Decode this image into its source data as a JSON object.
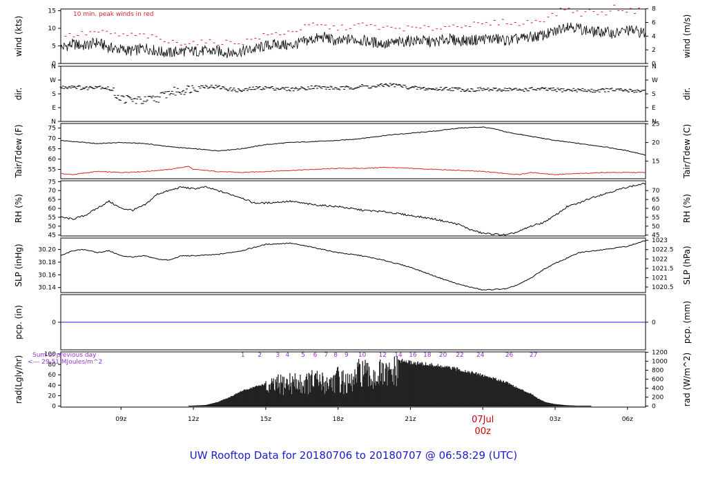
{
  "title": "UW Rooftop Data for 20180706  to  20180707 @ 06:58:29  (UTC)",
  "colors": {
    "title": "#1a1acc",
    "peak": "#e02020",
    "dew": "#e02020",
    "pcp": "#1a1acc",
    "rad_note": "#9933cc",
    "day": "#cc0000",
    "line": "#000000"
  },
  "x_axis": {
    "range": [
      6.5,
      30.75
    ],
    "ticks": [
      {
        "x": 9,
        "label": "09z"
      },
      {
        "x": 12,
        "label": "12z"
      },
      {
        "x": 15,
        "label": "15z"
      },
      {
        "x": 18,
        "label": "18z"
      },
      {
        "x": 21,
        "label": "21z"
      },
      {
        "x": 24,
        "label": "00z"
      },
      {
        "x": 27,
        "label": "03z"
      },
      {
        "x": 30,
        "label": "06z"
      }
    ],
    "day_label": {
      "x": 24,
      "line1": "07Jul",
      "line2": "00z"
    }
  },
  "chart_data": [
    {
      "type": "line",
      "id": "wind",
      "ylabel_left": "wind (kts)",
      "ylabel_right": "wind (m/s)",
      "ylim": [
        0,
        15.5
      ],
      "left_ticks": [
        {
          "v": 0,
          "l": "0"
        },
        {
          "v": 5,
          "l": "5"
        },
        {
          "v": 10,
          "l": "10"
        },
        {
          "v": 15,
          "l": "15"
        }
      ],
      "right_ticks": [
        {
          "v": 0,
          "l": "0"
        },
        {
          "v": 3.888,
          "l": "2"
        },
        {
          "v": 7.776,
          "l": "4"
        },
        {
          "v": 11.664,
          "l": "6"
        },
        {
          "v": 15.552,
          "l": "8"
        }
      ],
      "annotation": "10 min. peak winds in red",
      "series": [
        {
          "role": "mean",
          "x": [
            6.5,
            7,
            7.5,
            8,
            8.5,
            9,
            9.5,
            10,
            10.5,
            11,
            11.5,
            12,
            12.5,
            13,
            13.5,
            14,
            14.5,
            15,
            15.5,
            16,
            16.5,
            17,
            17.5,
            18,
            18.5,
            19,
            19.5,
            20,
            20.5,
            21,
            21.5,
            22,
            22.5,
            23,
            23.5,
            24,
            24.5,
            25,
            25.5,
            26,
            26.5,
            27,
            27.5,
            28,
            28.5,
            29,
            29.5,
            30,
            30.5,
            30.75
          ],
          "y": [
            4.5,
            5.5,
            5,
            6,
            4.5,
            4,
            3.5,
            4.5,
            3.5,
            3,
            3.5,
            3.5,
            3.5,
            3.5,
            3,
            3.5,
            4,
            5,
            5.5,
            5,
            6,
            7,
            7.5,
            6,
            7,
            6.5,
            6,
            5.5,
            6,
            6.5,
            6.5,
            6,
            7,
            6.5,
            6.5,
            7,
            7,
            6.5,
            7,
            7.5,
            8,
            9,
            11,
            10,
            9,
            9,
            8.5,
            9.5,
            9,
            8.5
          ]
        },
        {
          "role": "peak",
          "x": [
            7,
            8,
            9,
            10,
            11,
            12,
            13,
            14,
            15,
            16,
            17,
            18,
            19,
            20,
            21,
            22,
            23,
            24,
            25,
            25.5,
            26,
            26.5,
            27,
            27.5,
            28,
            28.5,
            29,
            29.5,
            30,
            30.5
          ],
          "y": [
            8,
            9,
            8,
            8,
            6,
            6,
            6,
            6,
            8,
            9,
            11,
            10,
            11,
            10,
            10,
            10,
            11,
            11,
            12,
            11,
            12,
            12.5,
            14,
            16,
            14,
            15,
            14,
            16,
            15,
            15
          ]
        }
      ]
    },
    {
      "type": "scatter",
      "id": "dir",
      "ylabel_left": "dir.",
      "ylabel_right": "dir.",
      "ylim": [
        0,
        360
      ],
      "left_ticks": [
        {
          "v": 360,
          "l": "N"
        },
        {
          "v": 270,
          "l": "W"
        },
        {
          "v": 180,
          "l": "S"
        },
        {
          "v": 90,
          "l": "E"
        },
        {
          "v": 0,
          "l": "N"
        }
      ],
      "right_ticks": [
        {
          "v": 360,
          "l": "N"
        },
        {
          "v": 270,
          "l": "W"
        },
        {
          "v": 180,
          "l": "S"
        },
        {
          "v": 90,
          "l": "E"
        },
        {
          "v": 0,
          "l": "N"
        }
      ],
      "series": [
        {
          "role": "dir",
          "x": [
            6.5,
            7,
            7.5,
            8,
            8.5,
            9,
            9.5,
            10,
            10.5,
            11,
            11.5,
            12,
            12.5,
            13,
            13.5,
            14,
            14.5,
            15,
            15.5,
            16,
            16.5,
            17,
            17.5,
            18,
            18.5,
            19,
            19.5,
            20,
            20.5,
            21,
            21.5,
            22,
            22.5,
            23,
            23.5,
            24,
            24.5,
            25,
            25.5,
            26,
            26.5,
            27,
            27.5,
            28,
            28.5,
            29,
            29.5,
            30,
            30.5,
            30.75
          ],
          "y": [
            220,
            230,
            215,
            230,
            215,
            150,
            140,
            135,
            150,
            190,
            200,
            220,
            230,
            225,
            210,
            200,
            215,
            220,
            215,
            210,
            215,
            225,
            220,
            215,
            220,
            230,
            225,
            240,
            235,
            220,
            215,
            210,
            215,
            210,
            205,
            210,
            205,
            210,
            205,
            210,
            210,
            205,
            205,
            205,
            200,
            205,
            205,
            200,
            200,
            200
          ]
        }
      ]
    },
    {
      "type": "line",
      "id": "temp",
      "ylabel_left": "Tair/Tdew (F)",
      "ylabel_right": "Tair/Tdew (C)",
      "ylim": [
        50.5,
        77.2
      ],
      "left_ticks": [
        {
          "v": 55,
          "l": "55"
        },
        {
          "v": 60,
          "l": "60"
        },
        {
          "v": 65,
          "l": "65"
        },
        {
          "v": 70,
          "l": "70"
        },
        {
          "v": 75,
          "l": "75"
        }
      ],
      "right_ticks": [
        {
          "v": 59,
          "l": "15"
        },
        {
          "v": 68,
          "l": "20"
        },
        {
          "v": 77,
          "l": "25"
        }
      ],
      "series": [
        {
          "name": "Tair",
          "x": [
            6.5,
            7,
            8,
            9,
            10,
            11,
            12,
            13,
            14,
            15,
            16,
            17,
            18,
            19,
            20,
            21,
            22,
            23,
            24,
            24.5,
            25,
            26,
            27,
            28,
            29,
            30,
            30.75
          ],
          "y": [
            69,
            68.5,
            67.5,
            68,
            67.5,
            66,
            65,
            64,
            65,
            67,
            68,
            68.5,
            69,
            70,
            71.5,
            72.5,
            73.5,
            75,
            75.5,
            74.5,
            73,
            71,
            69,
            67.5,
            66,
            64,
            62
          ]
        },
        {
          "name": "Tdew",
          "x": [
            6.5,
            7,
            8,
            9,
            10,
            11,
            11.8,
            12,
            13,
            14,
            15,
            16,
            17,
            18,
            19,
            20,
            21,
            22,
            23,
            24,
            25,
            25.5,
            26,
            27,
            28,
            29,
            30,
            30.75
          ],
          "y": [
            53,
            52.5,
            54,
            53.5,
            54,
            55,
            56.5,
            55,
            54,
            53.5,
            54,
            54.5,
            55,
            55.5,
            55.5,
            56,
            55.5,
            55,
            54.5,
            54,
            53,
            52.5,
            53.5,
            52.5,
            53,
            53.5,
            53.5,
            53.5
          ]
        }
      ]
    },
    {
      "type": "line",
      "id": "rh",
      "ylabel_left": "RH (%)",
      "ylabel_right": "RH (%)",
      "ylim": [
        44.5,
        75.5
      ],
      "left_ticks": [
        {
          "v": 45,
          "l": "45"
        },
        {
          "v": 50,
          "l": "50"
        },
        {
          "v": 55,
          "l": "55"
        },
        {
          "v": 60,
          "l": "60"
        },
        {
          "v": 65,
          "l": "65"
        },
        {
          "v": 70,
          "l": "70"
        },
        {
          "v": 75,
          "l": "75"
        }
      ],
      "right_ticks": [
        {
          "v": 45,
          "l": "45"
        },
        {
          "v": 50,
          "l": "50"
        },
        {
          "v": 55,
          "l": "55"
        },
        {
          "v": 60,
          "l": "60"
        },
        {
          "v": 65,
          "l": "65"
        },
        {
          "v": 70,
          "l": "70"
        }
      ],
      "series": [
        {
          "name": "RH",
          "x": [
            6.5,
            7,
            7.5,
            8,
            8.5,
            9,
            9.5,
            10,
            10.5,
            11,
            11.5,
            12,
            12.5,
            13,
            13.5,
            14,
            14.5,
            15,
            16,
            17,
            18,
            19,
            20,
            21,
            22,
            23,
            23.5,
            24,
            25,
            25.5,
            26,
            26.5,
            27,
            27.5,
            28,
            28.5,
            29,
            29.5,
            30,
            30.75
          ],
          "y": [
            55,
            54,
            56,
            60,
            64,
            60,
            59,
            62,
            68,
            70,
            72,
            71,
            72,
            70,
            68,
            66,
            63,
            63,
            64,
            62,
            61,
            59,
            58,
            56,
            54,
            51,
            48,
            46,
            45,
            47,
            50,
            52,
            56,
            61,
            63,
            66,
            68,
            70,
            72,
            74
          ]
        }
      ]
    },
    {
      "type": "line",
      "id": "slp",
      "ylabel_left": "SLP (inHg)",
      "ylabel_right": "SLP (hPa)",
      "ylim": [
        30.132,
        30.218
      ],
      "left_ticks": [
        {
          "v": 30.14,
          "l": "30.14"
        },
        {
          "v": 30.16,
          "l": "30.16"
        },
        {
          "v": 30.18,
          "l": "30.18"
        },
        {
          "v": 30.2,
          "l": "30.20"
        }
      ],
      "right_ticks": [
        {
          "v": 30.1407,
          "l": "1020.5"
        },
        {
          "v": 30.1555,
          "l": "1021"
        },
        {
          "v": 30.1702,
          "l": "1021.5"
        },
        {
          "v": 30.185,
          "l": "1022"
        },
        {
          "v": 30.1998,
          "l": "1022.5"
        },
        {
          "v": 30.2145,
          "l": "1023"
        }
      ],
      "series": [
        {
          "name": "SLP",
          "x": [
            6.5,
            7,
            7.5,
            8,
            8.5,
            9,
            9.5,
            10,
            10.5,
            11,
            11.5,
            12,
            13,
            14,
            15,
            16,
            17,
            18,
            19,
            20,
            21,
            22,
            23,
            24,
            25,
            25.5,
            26,
            26.5,
            27,
            28,
            29,
            30,
            30.75
          ],
          "y": [
            30.19,
            30.198,
            30.2,
            30.195,
            30.198,
            30.19,
            30.188,
            30.19,
            30.185,
            30.183,
            30.19,
            30.19,
            30.192,
            30.198,
            30.208,
            30.21,
            30.203,
            30.195,
            30.19,
            30.182,
            30.172,
            30.158,
            30.145,
            30.136,
            30.138,
            30.145,
            30.155,
            30.168,
            30.178,
            30.195,
            30.2,
            30.205,
            30.214
          ]
        }
      ]
    },
    {
      "type": "line",
      "id": "pcp",
      "ylabel_left": "pcp. (in)",
      "ylabel_right": "pcp. (mm)",
      "ylim": [
        -1,
        1
      ],
      "left_ticks": [
        {
          "v": 0,
          "l": "0"
        }
      ],
      "right_ticks": [
        {
          "v": 0,
          "l": "0"
        }
      ],
      "series": [
        {
          "name": "pcp",
          "x": [
            6.5,
            30.75
          ],
          "y": [
            0,
            0
          ]
        }
      ]
    },
    {
      "type": "area",
      "id": "rad",
      "ylabel_left": "rad(Lgly/hr)",
      "ylabel_right": "rad (W/m^2)",
      "ylim": [
        -2,
        104
      ],
      "left_ticks": [
        {
          "v": 0,
          "l": "0"
        },
        {
          "v": 20,
          "l": "20"
        },
        {
          "v": 40,
          "l": "40"
        },
        {
          "v": 60,
          "l": "60"
        },
        {
          "v": 80,
          "l": "80"
        },
        {
          "v": 100,
          "l": "100"
        }
      ],
      "right_ticks": [
        {
          "v": 0,
          "l": "0"
        },
        {
          "v": 17.2,
          "l": "200"
        },
        {
          "v": 34.4,
          "l": "400"
        },
        {
          "v": 51.6,
          "l": "600"
        },
        {
          "v": 68.8,
          "l": "800"
        },
        {
          "v": 86.0,
          "l": "1000"
        },
        {
          "v": 103.2,
          "l": "1200"
        }
      ],
      "previous_day_note": [
        "Sum of previous day",
        "<--- 29.51 MJoules/m^2"
      ],
      "hour_marks": [
        {
          "x": 14.05,
          "l": "1"
        },
        {
          "x": 14.75,
          "l": "2"
        },
        {
          "x": 15.5,
          "l": "3"
        },
        {
          "x": 15.9,
          "l": "4"
        },
        {
          "x": 16.55,
          "l": "5"
        },
        {
          "x": 17.05,
          "l": "6"
        },
        {
          "x": 17.5,
          "l": "7"
        },
        {
          "x": 17.9,
          "l": "8"
        },
        {
          "x": 18.35,
          "l": "9"
        },
        {
          "x": 19,
          "l": "10"
        },
        {
          "x": 19.85,
          "l": "12"
        },
        {
          "x": 20.5,
          "l": "14"
        },
        {
          "x": 21.1,
          "l": "16"
        },
        {
          "x": 21.7,
          "l": "18"
        },
        {
          "x": 22.35,
          "l": "20"
        },
        {
          "x": 23.05,
          "l": "22"
        },
        {
          "x": 23.9,
          "l": "24"
        },
        {
          "x": 25.1,
          "l": "26"
        },
        {
          "x": 26.1,
          "l": "27"
        }
      ],
      "series": [
        {
          "name": "rad",
          "x": [
            11.8,
            12.5,
            13,
            13.5,
            14,
            14.5,
            15,
            15.5,
            16,
            16.5,
            17,
            17.5,
            18,
            18.5,
            19,
            19.3,
            19.6,
            20,
            20.5,
            21,
            22,
            23,
            24,
            25,
            25.5,
            26,
            26.3,
            26.6,
            27,
            27.5,
            28,
            28.5
          ],
          "y": [
            0.5,
            2,
            8,
            18,
            30,
            38,
            45,
            55,
            62,
            58,
            66,
            60,
            72,
            55,
            95,
            70,
            85,
            78,
            92,
            88,
            82,
            74,
            62,
            48,
            35,
            25,
            15,
            8,
            4,
            1.5,
            0.5,
            0
          ]
        }
      ]
    }
  ]
}
